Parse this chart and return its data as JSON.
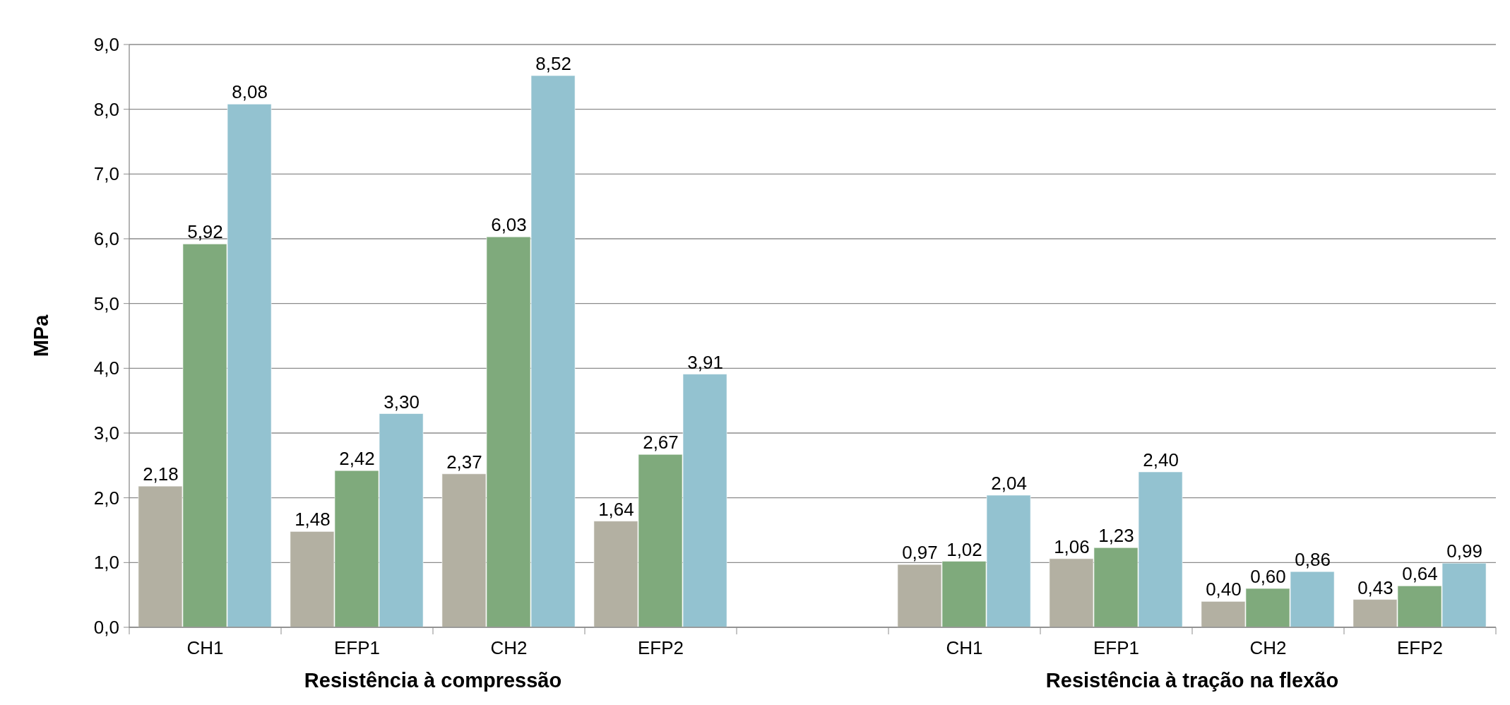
{
  "chart_data": {
    "type": "bar",
    "ylabel": "MPa",
    "categories": [
      "CH1",
      "EFP1",
      "CH2",
      "EFP2",
      null,
      "CH1",
      "EFP1",
      "CH2",
      "EFP2"
    ],
    "series": [
      {
        "color": "#b3b0a2",
        "values": [
          2.18,
          1.48,
          2.37,
          1.64,
          null,
          0.97,
          1.06,
          0.4,
          0.43
        ],
        "value_labels": [
          "2,18",
          "1,48",
          "2,37",
          "1,64",
          null,
          "0,97",
          "1,06",
          "0,40",
          "0,43"
        ]
      },
      {
        "color": "#7faa7c",
        "values": [
          5.92,
          2.42,
          6.03,
          2.67,
          null,
          1.02,
          1.23,
          0.6,
          0.64
        ],
        "value_labels": [
          "5,92",
          "2,42",
          "6,03",
          "2,67",
          null,
          "1,02",
          "1,23",
          "0,60",
          "0,64"
        ]
      },
      {
        "color": "#93c2d0",
        "values": [
          8.08,
          3.3,
          8.52,
          3.91,
          null,
          2.04,
          2.4,
          0.86,
          0.99
        ],
        "value_labels": [
          "8,08",
          "3,30",
          "8,52",
          "3,91",
          null,
          "2,04",
          "2,40",
          "0,86",
          "0,99"
        ]
      }
    ],
    "ylim": [
      0,
      9
    ],
    "yticks": [
      {
        "value": 0,
        "label": "0,0"
      },
      {
        "value": 1,
        "label": "1,0"
      },
      {
        "value": 2,
        "label": "2,0"
      },
      {
        "value": 3,
        "label": "3,0"
      },
      {
        "value": 4,
        "label": "4,0"
      },
      {
        "value": 5,
        "label": "5,0"
      },
      {
        "value": 6,
        "label": "6,0"
      },
      {
        "value": 7,
        "label": "7,0"
      },
      {
        "value": 8,
        "label": "8,0"
      },
      {
        "value": 9,
        "label": "9,0"
      }
    ],
    "grid": "y",
    "annotations": [
      "Resistência à compressão",
      "Resistência à tração na flexão"
    ]
  }
}
